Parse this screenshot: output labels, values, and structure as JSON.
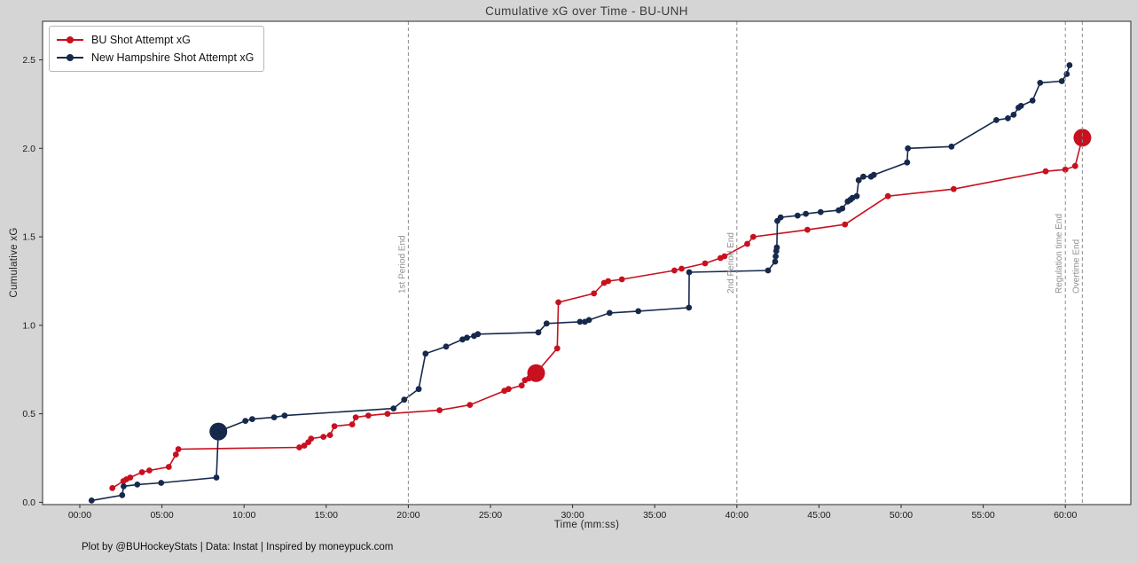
{
  "footer": "Plot by @BUHockeyStats | Data: Instat | Inspired by moneypuck.com",
  "colors": {
    "bu_red": "#c8101e",
    "unh_navy": "#16294c",
    "figure_bg": "#d5d5d5",
    "plot_bg": "#ffffff",
    "frame": "#2a2a2a",
    "event_line": "#8c8c8c",
    "event_label": "#909090",
    "tick_text": "#1a1a1a"
  },
  "chart_data": {
    "type": "line",
    "title": "Cumulative xG over Time - BU-UNH",
    "subtitle": "",
    "legend_position": "upper left",
    "grid": false,
    "x_axis": {
      "label": "Time (mm:ss)",
      "lim_seconds": [
        -136,
        3839
      ],
      "ticks": [
        {
          "s": 0,
          "label": "00:00"
        },
        {
          "s": 300,
          "label": "05:00"
        },
        {
          "s": 600,
          "label": "10:00"
        },
        {
          "s": 900,
          "label": "15:00"
        },
        {
          "s": 1200,
          "label": "20:00"
        },
        {
          "s": 1500,
          "label": "25:00"
        },
        {
          "s": 1800,
          "label": "30:00"
        },
        {
          "s": 2100,
          "label": "35:00"
        },
        {
          "s": 2400,
          "label": "40:00"
        },
        {
          "s": 2700,
          "label": "45:00"
        },
        {
          "s": 3000,
          "label": "50:00"
        },
        {
          "s": 3300,
          "label": "55:00"
        },
        {
          "s": 3600,
          "label": "60:00"
        }
      ]
    },
    "y_axis": {
      "label": "Cumulative xG",
      "lim": [
        -0.013,
        2.718
      ],
      "ticks": [
        {
          "v": 0.0,
          "label": "0.0"
        },
        {
          "v": 0.5,
          "label": "0.5"
        },
        {
          "v": 1.0,
          "label": "1.0"
        },
        {
          "v": 1.5,
          "label": "1.5"
        },
        {
          "v": 2.0,
          "label": "2.0"
        },
        {
          "v": 2.5,
          "label": "2.5"
        }
      ]
    },
    "event_lines": [
      {
        "s": 1200,
        "label": "1st Period End"
      },
      {
        "s": 2400,
        "label": "2nd Period End"
      },
      {
        "s": 3600,
        "label": "Regulation time End"
      },
      {
        "s": 3662,
        "label": "Overtime End"
      }
    ],
    "point_format": [
      "time_seconds",
      "cumulative_xg",
      "is_goal"
    ],
    "series": [
      {
        "name": "BU Shot Attempt xG",
        "color": "#c8101e",
        "points": [
          [
            119,
            0.08,
            0
          ],
          [
            159,
            0.12,
            0
          ],
          [
            170,
            0.13,
            0
          ],
          [
            184,
            0.14,
            0
          ],
          [
            227,
            0.17,
            0
          ],
          [
            254,
            0.18,
            0
          ],
          [
            325,
            0.2,
            0
          ],
          [
            351,
            0.27,
            0
          ],
          [
            360,
            0.3,
            0
          ],
          [
            802,
            0.31,
            0
          ],
          [
            820,
            0.32,
            0
          ],
          [
            835,
            0.34,
            0
          ],
          [
            845,
            0.36,
            0
          ],
          [
            890,
            0.37,
            0
          ],
          [
            914,
            0.38,
            0
          ],
          [
            930,
            0.43,
            0
          ],
          [
            995,
            0.44,
            0
          ],
          [
            1008,
            0.48,
            0
          ],
          [
            1054,
            0.49,
            0
          ],
          [
            1124,
            0.5,
            0
          ],
          [
            1314,
            0.52,
            0
          ],
          [
            1425,
            0.55,
            0
          ],
          [
            1551,
            0.63,
            0
          ],
          [
            1566,
            0.64,
            0
          ],
          [
            1614,
            0.66,
            0
          ],
          [
            1626,
            0.69,
            0
          ],
          [
            1641,
            0.7,
            0
          ],
          [
            1667,
            0.73,
            1
          ],
          [
            1744,
            0.87,
            0
          ],
          [
            1748,
            1.13,
            0
          ],
          [
            1878,
            1.18,
            0
          ],
          [
            1915,
            1.24,
            0
          ],
          [
            1930,
            1.25,
            0
          ],
          [
            1980,
            1.26,
            0
          ],
          [
            2172,
            1.31,
            0
          ],
          [
            2198,
            1.32,
            0
          ],
          [
            2284,
            1.35,
            0
          ],
          [
            2340,
            1.38,
            0
          ],
          [
            2355,
            1.39,
            0
          ],
          [
            2438,
            1.46,
            0
          ],
          [
            2460,
            1.5,
            0
          ],
          [
            2658,
            1.54,
            0
          ],
          [
            2795,
            1.57,
            0
          ],
          [
            2952,
            1.73,
            0
          ],
          [
            3192,
            1.77,
            0
          ],
          [
            3528,
            1.87,
            0
          ],
          [
            3600,
            1.88,
            0
          ],
          [
            3636,
            1.9,
            0
          ],
          [
            3662,
            2.06,
            1
          ]
        ]
      },
      {
        "name": "New Hampshire Shot Attempt xG",
        "color": "#16294c",
        "points": [
          [
            43,
            0.01,
            0
          ],
          [
            155,
            0.04,
            0
          ],
          [
            160,
            0.09,
            0
          ],
          [
            210,
            0.1,
            0
          ],
          [
            297,
            0.11,
            0
          ],
          [
            499,
            0.14,
            0
          ],
          [
            506,
            0.4,
            1
          ],
          [
            605,
            0.46,
            0
          ],
          [
            630,
            0.47,
            0
          ],
          [
            710,
            0.48,
            0
          ],
          [
            748,
            0.49,
            0
          ],
          [
            1146,
            0.53,
            0
          ],
          [
            1185,
            0.58,
            0
          ],
          [
            1238,
            0.64,
            0
          ],
          [
            1263,
            0.84,
            0
          ],
          [
            1338,
            0.88,
            0
          ],
          [
            1398,
            0.92,
            0
          ],
          [
            1414,
            0.93,
            0
          ],
          [
            1440,
            0.94,
            0
          ],
          [
            1454,
            0.95,
            0
          ],
          [
            1675,
            0.96,
            0
          ],
          [
            1705,
            1.01,
            0
          ],
          [
            1827,
            1.02,
            0
          ],
          [
            1845,
            1.02,
            0
          ],
          [
            1860,
            1.03,
            0
          ],
          [
            1935,
            1.07,
            0
          ],
          [
            2040,
            1.08,
            0
          ],
          [
            2225,
            1.1,
            0
          ],
          [
            2226,
            1.3,
            0
          ],
          [
            2514,
            1.31,
            0
          ],
          [
            2540,
            1.36,
            0
          ],
          [
            2542,
            1.39,
            0
          ],
          [
            2544,
            1.42,
            0
          ],
          [
            2546,
            1.44,
            0
          ],
          [
            2548,
            1.59,
            0
          ],
          [
            2560,
            1.61,
            0
          ],
          [
            2622,
            1.62,
            0
          ],
          [
            2652,
            1.63,
            0
          ],
          [
            2706,
            1.64,
            0
          ],
          [
            2772,
            1.65,
            0
          ],
          [
            2785,
            1.66,
            0
          ],
          [
            2805,
            1.7,
            0
          ],
          [
            2815,
            1.71,
            0
          ],
          [
            2822,
            1.72,
            0
          ],
          [
            2838,
            1.73,
            0
          ],
          [
            2845,
            1.82,
            0
          ],
          [
            2862,
            1.84,
            0
          ],
          [
            2890,
            1.84,
            0
          ],
          [
            2900,
            1.85,
            0
          ],
          [
            3022,
            1.92,
            0
          ],
          [
            3025,
            2.0,
            0
          ],
          [
            3184,
            2.01,
            0
          ],
          [
            3348,
            2.16,
            0
          ],
          [
            3390,
            2.17,
            0
          ],
          [
            3411,
            2.19,
            0
          ],
          [
            3429,
            2.23,
            0
          ],
          [
            3438,
            2.24,
            0
          ],
          [
            3480,
            2.27,
            0
          ],
          [
            3508,
            2.37,
            0
          ],
          [
            3587,
            2.38,
            0
          ],
          [
            3605,
            2.42,
            0
          ],
          [
            3615,
            2.47,
            0
          ]
        ]
      }
    ]
  }
}
